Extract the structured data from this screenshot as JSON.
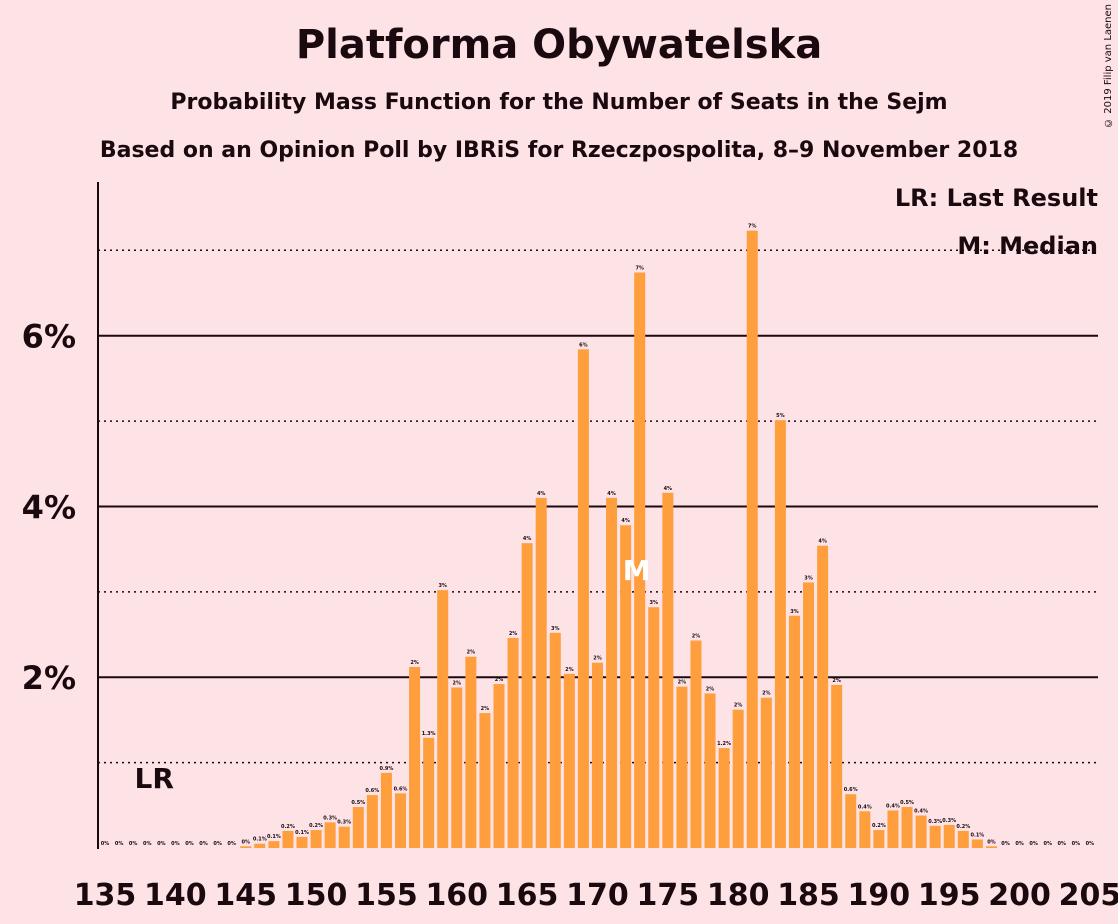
{
  "title": "Platforma Obywatelska",
  "subtitle": "Probability Mass Function for the Number of Seats in the Sejm",
  "subtitle2": "Based on an Opinion Poll by IBRiS for Rzeczpospolita, 8–9 November 2018",
  "copyright": "© 2019 Filip van Laenen",
  "legend": {
    "lr": "LR: Last Result",
    "m": "M: Median"
  },
  "colors": {
    "bar": "#ff9e3d",
    "background": "#fde2e6",
    "text": "#1a0a0f"
  },
  "chart_data": {
    "type": "bar",
    "x": [
      135,
      136,
      137,
      138,
      139,
      140,
      141,
      142,
      143,
      144,
      145,
      146,
      147,
      148,
      149,
      150,
      151,
      152,
      153,
      154,
      155,
      156,
      157,
      158,
      159,
      160,
      161,
      162,
      163,
      164,
      165,
      166,
      167,
      168,
      169,
      170,
      171,
      172,
      173,
      174,
      175,
      176,
      177,
      178,
      179,
      180,
      181,
      182,
      183,
      184,
      185,
      186,
      187,
      188,
      189,
      190,
      191,
      192,
      193,
      194,
      195,
      196,
      197,
      198,
      199,
      200,
      201,
      202,
      203,
      204,
      205
    ],
    "values": [
      0,
      0,
      0,
      0,
      0,
      0,
      0,
      0,
      0,
      0,
      0.02,
      0.05,
      0.08,
      0.2,
      0.13,
      0.21,
      0.3,
      0.25,
      0.48,
      0.62,
      0.88,
      0.64,
      2.12,
      1.29,
      3.02,
      1.88,
      2.24,
      1.58,
      1.92,
      2.46,
      3.57,
      4.1,
      2.52,
      2.04,
      5.84,
      2.17,
      4.1,
      3.78,
      6.74,
      2.82,
      4.16,
      1.89,
      2.43,
      1.81,
      1.17,
      1.62,
      7.23,
      1.76,
      5.01,
      2.72,
      3.11,
      3.54,
      1.91,
      0.63,
      0.43,
      0.21,
      0.44,
      0.48,
      0.38,
      0.26,
      0.27,
      0.2,
      0.1,
      0.02,
      0,
      0,
      0,
      0,
      0,
      0,
      0
    ],
    "labels": [
      "0%",
      "0%",
      "0%",
      "0%",
      "0%",
      "0%",
      "0%",
      "0%",
      "0%",
      "0%",
      "0%",
      "0.1%",
      "0.1%",
      "0.2%",
      "0.1%",
      "0.2%",
      "0.3%",
      "0.3%",
      "0.5%",
      "0.6%",
      "0.9%",
      "0.6%",
      "2%",
      "1.3%",
      "3%",
      "2%",
      "2%",
      "2%",
      "2%",
      "2%",
      "4%",
      "4%",
      "3%",
      "2%",
      "6%",
      "2%",
      "4%",
      "4%",
      "7%",
      "3%",
      "4%",
      "2%",
      "2%",
      "2%",
      "1.2%",
      "2%",
      "7%",
      "2%",
      "5%",
      "3%",
      "3%",
      "4%",
      "2%",
      "0.6%",
      "0.4%",
      "0.2%",
      "0.4%",
      "0.5%",
      "0.4%",
      "0.3%",
      "0.3%",
      "0.2%",
      "0.1%",
      "0%",
      "0%",
      "0%",
      "0%",
      "0%",
      "0%",
      "0%",
      "0%"
    ],
    "x_ticks": [
      "135",
      "140",
      "145",
      "150",
      "155",
      "160",
      "165",
      "170",
      "175",
      "180",
      "185",
      "190",
      "195",
      "200",
      "205"
    ],
    "y_ticks": [
      "2%",
      "4%",
      "6%"
    ],
    "ylim": [
      0,
      7.8
    ],
    "last_result": 138,
    "last_result_label": "LR",
    "median": 173,
    "median_label": "M",
    "grid": true,
    "legend_position": "top-right"
  }
}
